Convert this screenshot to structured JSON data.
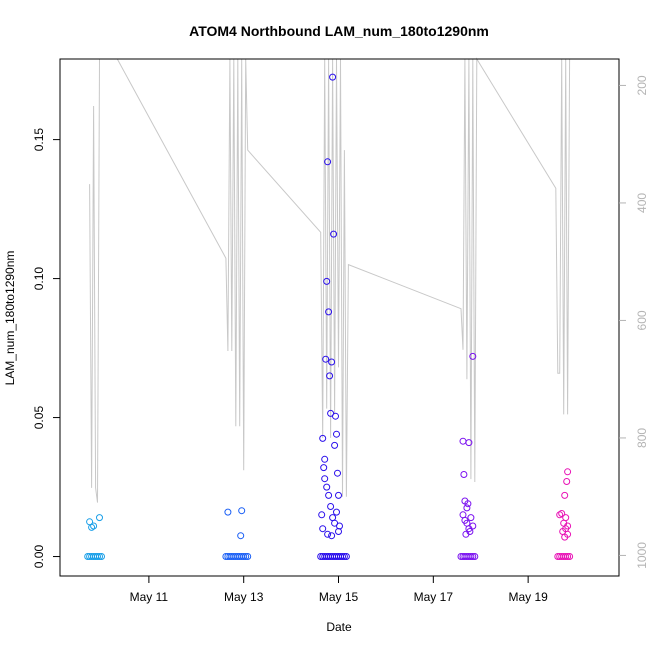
{
  "chart_data": {
    "type": "scatter",
    "title": "ATOM4 Northbound LAM_num_180to1290nm",
    "xlabel": "Date",
    "ylabel": "LAM_num_180to1290nm",
    "xlim": [
      "2023-05-09 03:00",
      "2023-05-20 22:00"
    ],
    "ylim": [
      -0.007,
      0.179
    ],
    "y2lim": [
      1035,
      155
    ],
    "grid": false,
    "legend": "none",
    "x_ticks": [
      {
        "date": "2023-05-11",
        "label": "May 11"
      },
      {
        "date": "2023-05-13",
        "label": "May 13"
      },
      {
        "date": "2023-05-15",
        "label": "May 15"
      },
      {
        "date": "2023-05-17",
        "label": "May 17"
      },
      {
        "date": "2023-05-19",
        "label": "May 19"
      }
    ],
    "y_ticks": [
      0.0,
      0.05,
      0.1,
      0.15
    ],
    "y_tick_labels": [
      "0.00",
      "0.05",
      "0.10",
      "0.15"
    ],
    "y2_ticks": [
      200,
      400,
      600,
      800,
      1000
    ],
    "y2_tick_labels": [
      "200",
      "400",
      "600",
      "800",
      "1000"
    ],
    "colors": {
      "line": "#c8c8c8",
      "series": [
        "#1a9fe8",
        "#1a5ff5",
        "#2b10ec",
        "#7a10f0",
        "#e813b6"
      ]
    },
    "line_series": {
      "name": "",
      "axis": "right",
      "points": [
        [
          "2023-05-09 18:00",
          368
        ],
        [
          "2023-05-09 19:00",
          885
        ],
        [
          "2023-05-09 20:00",
          235
        ],
        [
          "2023-05-09 21:00",
          885
        ],
        [
          "2023-05-09 22:00",
          910
        ],
        [
          "2023-05-09 23:00",
          155
        ],
        [
          "2023-05-10 08:00",
          155
        ],
        [
          "2023-05-12 15:00",
          494
        ],
        [
          "2023-05-12 16:00",
          652
        ],
        [
          "2023-05-12 17:00",
          155
        ],
        [
          "2023-05-12 18:00",
          652
        ],
        [
          "2023-05-12 19:00",
          155
        ],
        [
          "2023-05-12 20:00",
          780
        ],
        [
          "2023-05-12 21:00",
          155
        ],
        [
          "2023-05-12 22:00",
          780
        ],
        [
          "2023-05-12 23:00",
          155
        ],
        [
          "2023-05-13 00:00",
          855
        ],
        [
          "2023-05-13 01:00",
          155
        ],
        [
          "2023-05-13 02:00",
          310
        ],
        [
          "2023-05-14 15:00",
          450
        ],
        [
          "2023-05-14 16:00",
          800
        ],
        [
          "2023-05-14 17:00",
          155
        ],
        [
          "2023-05-14 18:00",
          750
        ],
        [
          "2023-05-14 19:00",
          155
        ],
        [
          "2023-05-14 20:00",
          800
        ],
        [
          "2023-05-14 21:00",
          155
        ],
        [
          "2023-05-14 22:00",
          760
        ],
        [
          "2023-05-14 23:00",
          155
        ],
        [
          "2023-05-15 00:00",
          680
        ],
        [
          "2023-05-15 01:00",
          155
        ],
        [
          "2023-05-15 02:00",
          900
        ],
        [
          "2023-05-15 03:00",
          310
        ],
        [
          "2023-05-15 04:00",
          900
        ],
        [
          "2023-05-15 05:00",
          505
        ],
        [
          "2023-05-17 14:00",
          580
        ],
        [
          "2023-05-17 15:00",
          650
        ],
        [
          "2023-05-17 16:00",
          155
        ],
        [
          "2023-05-17 17:00",
          700
        ],
        [
          "2023-05-17 18:00",
          155
        ],
        [
          "2023-05-17 19:00",
          870
        ],
        [
          "2023-05-17 20:00",
          155
        ],
        [
          "2023-05-17 21:00",
          875
        ],
        [
          "2023-05-17 22:00",
          155
        ],
        [
          "2023-05-19 14:00",
          375
        ],
        [
          "2023-05-19 15:00",
          690
        ],
        [
          "2023-05-19 16:00",
          690
        ],
        [
          "2023-05-19 17:00",
          155
        ],
        [
          "2023-05-19 18:00",
          760
        ],
        [
          "2023-05-19 19:00",
          155
        ],
        [
          "2023-05-19 20:00",
          760
        ],
        [
          "2023-05-19 21:00",
          155
        ]
      ]
    },
    "series": [
      {
        "name": "",
        "color": "#1a9fe8",
        "points": [
          [
            "2023-05-09 18:00",
            0.0125
          ],
          [
            "2023-05-09 19:00",
            0.0105
          ],
          [
            "2023-05-09 20:00",
            0.011
          ],
          [
            "2023-05-09 23:00",
            0.014
          ],
          [
            "2023-05-09 17:00",
            0
          ],
          [
            "2023-05-09 18:00",
            0
          ],
          [
            "2023-05-09 19:00",
            0
          ],
          [
            "2023-05-09 20:00",
            0
          ],
          [
            "2023-05-09 21:00",
            0
          ],
          [
            "2023-05-09 22:00",
            0
          ],
          [
            "2023-05-09 23:00",
            0
          ],
          [
            "2023-05-10 00:00",
            0
          ]
        ]
      },
      {
        "name": "",
        "color": "#1a5ff5",
        "points": [
          [
            "2023-05-12 16:00",
            0.016
          ],
          [
            "2023-05-12 23:00",
            0.0165
          ],
          [
            "2023-05-12 22:30",
            0.0075
          ],
          [
            "2023-05-12 15:00",
            0
          ],
          [
            "2023-05-12 16:00",
            0
          ],
          [
            "2023-05-12 17:00",
            0
          ],
          [
            "2023-05-12 18:00",
            0
          ],
          [
            "2023-05-12 19:00",
            0
          ],
          [
            "2023-05-12 20:00",
            0
          ],
          [
            "2023-05-12 21:00",
            0
          ],
          [
            "2023-05-12 22:00",
            0
          ],
          [
            "2023-05-12 23:00",
            0
          ],
          [
            "2023-05-13 00:00",
            0
          ],
          [
            "2023-05-13 01:00",
            0
          ],
          [
            "2023-05-13 02:00",
            0
          ]
        ]
      },
      {
        "name": "",
        "color": "#2b10ec",
        "points": [
          [
            "2023-05-14 15:30",
            0.015
          ],
          [
            "2023-05-14 16:00",
            0.0425
          ],
          [
            "2023-05-14 16:30",
            0.032
          ],
          [
            "2023-05-14 17:00",
            0.035
          ],
          [
            "2023-05-14 17:30",
            0.071
          ],
          [
            "2023-05-14 18:00",
            0.099
          ],
          [
            "2023-05-14 18:30",
            0.142
          ],
          [
            "2023-05-14 19:00",
            0.088
          ],
          [
            "2023-05-14 19:30",
            0.065
          ],
          [
            "2023-05-14 20:00",
            0.0515
          ],
          [
            "2023-05-14 20:30",
            0.07
          ],
          [
            "2023-05-14 21:00",
            0.1725
          ],
          [
            "2023-05-14 21:30",
            0.116
          ],
          [
            "2023-05-14 22:00",
            0.04
          ],
          [
            "2023-05-14 22:30",
            0.0505
          ],
          [
            "2023-05-14 23:00",
            0.044
          ],
          [
            "2023-05-14 23:30",
            0.03
          ],
          [
            "2023-05-15 00:00",
            0.022
          ],
          [
            "2023-05-15 00:30",
            0.011
          ],
          [
            "2023-05-14 17:00",
            0.028
          ],
          [
            "2023-05-14 18:00",
            0.025
          ],
          [
            "2023-05-14 19:00",
            0.022
          ],
          [
            "2023-05-14 20:00",
            0.018
          ],
          [
            "2023-05-14 21:00",
            0.014
          ],
          [
            "2023-05-14 22:00",
            0.012
          ],
          [
            "2023-05-14 23:00",
            0.016
          ],
          [
            "2023-05-15 00:00",
            0.009
          ],
          [
            "2023-05-14 16:00",
            0.01
          ],
          [
            "2023-05-14 18:30",
            0.008
          ],
          [
            "2023-05-14 20:30",
            0.0075
          ],
          [
            "2023-05-14 15:00",
            0
          ],
          [
            "2023-05-14 16:00",
            0
          ],
          [
            "2023-05-14 17:00",
            0
          ],
          [
            "2023-05-14 18:00",
            0
          ],
          [
            "2023-05-14 19:00",
            0
          ],
          [
            "2023-05-14 20:00",
            0
          ],
          [
            "2023-05-14 21:00",
            0
          ],
          [
            "2023-05-14 22:00",
            0
          ],
          [
            "2023-05-14 23:00",
            0
          ],
          [
            "2023-05-15 00:00",
            0
          ],
          [
            "2023-05-15 01:00",
            0
          ],
          [
            "2023-05-15 02:00",
            0
          ],
          [
            "2023-05-15 03:00",
            0
          ],
          [
            "2023-05-15 04:00",
            0
          ]
        ]
      },
      {
        "name": "",
        "color": "#7a10f0",
        "points": [
          [
            "2023-05-17 15:00",
            0.0415
          ],
          [
            "2023-05-17 15:30",
            0.0295
          ],
          [
            "2023-05-17 16:00",
            0.02
          ],
          [
            "2023-05-17 17:00",
            0.0175
          ],
          [
            "2023-05-17 17:30",
            0.019
          ],
          [
            "2023-05-17 18:00",
            0.041
          ],
          [
            "2023-05-17 20:00",
            0.072
          ],
          [
            "2023-05-17 15:00",
            0.015
          ],
          [
            "2023-05-17 16:00",
            0.013
          ],
          [
            "2023-05-17 17:00",
            0.012
          ],
          [
            "2023-05-17 18:00",
            0.01
          ],
          [
            "2023-05-17 19:00",
            0.014
          ],
          [
            "2023-05-17 20:00",
            0.011
          ],
          [
            "2023-05-17 16:30",
            0.008
          ],
          [
            "2023-05-17 18:30",
            0.009
          ],
          [
            "2023-05-17 14:00",
            0
          ],
          [
            "2023-05-17 15:00",
            0
          ],
          [
            "2023-05-17 16:00",
            0
          ],
          [
            "2023-05-17 17:00",
            0
          ],
          [
            "2023-05-17 18:00",
            0
          ],
          [
            "2023-05-17 19:00",
            0
          ],
          [
            "2023-05-17 20:00",
            0
          ],
          [
            "2023-05-17 21:00",
            0
          ]
        ]
      },
      {
        "name": "",
        "color": "#e813b6",
        "points": [
          [
            "2023-05-19 20:00",
            0.0305
          ],
          [
            "2023-05-19 19:30",
            0.027
          ],
          [
            "2023-05-19 18:30",
            0.022
          ],
          [
            "2023-05-19 17:00",
            0.0155
          ],
          [
            "2023-05-19 16:00",
            0.015
          ],
          [
            "2023-05-19 19:00",
            0.014
          ],
          [
            "2023-05-19 18:00",
            0.012
          ],
          [
            "2023-05-19 20:00",
            0.011
          ],
          [
            "2023-05-19 19:00",
            0.01
          ],
          [
            "2023-05-19 17:30",
            0.009
          ],
          [
            "2023-05-19 20:00",
            0.008
          ],
          [
            "2023-05-19 18:30",
            0.007
          ],
          [
            "2023-05-19 15:00",
            0
          ],
          [
            "2023-05-19 16:00",
            0
          ],
          [
            "2023-05-19 17:00",
            0
          ],
          [
            "2023-05-19 18:00",
            0
          ],
          [
            "2023-05-19 19:00",
            0
          ],
          [
            "2023-05-19 20:00",
            0
          ],
          [
            "2023-05-19 21:00",
            0
          ]
        ]
      }
    ]
  }
}
